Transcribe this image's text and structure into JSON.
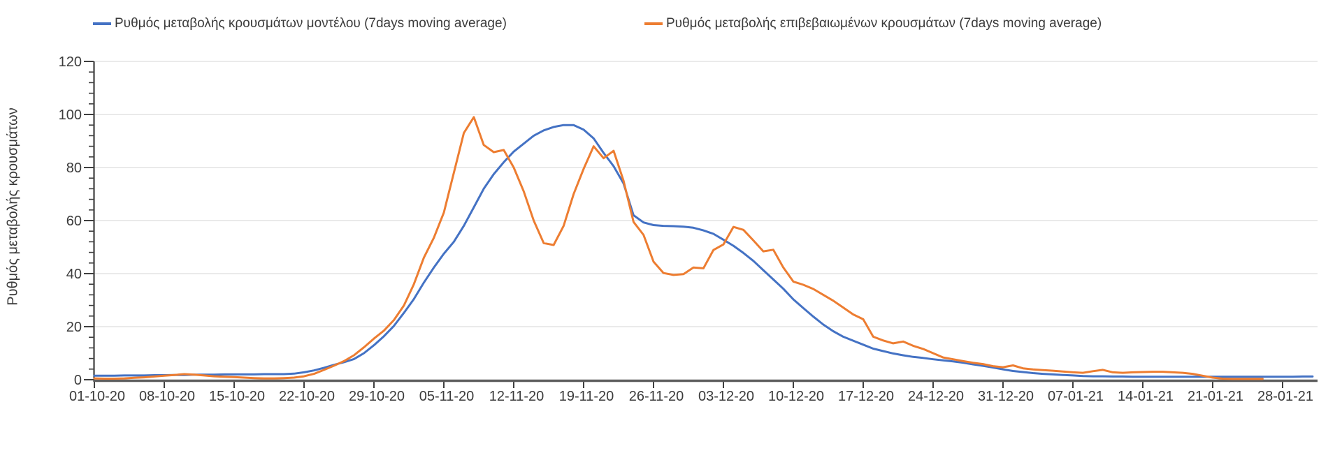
{
  "page": {
    "background": "#ffffff"
  },
  "chart_data": {
    "type": "line",
    "title": "",
    "xlabel": "",
    "ylabel": "Ρυθμός μεταβολής κρουσμάτων",
    "ylim": [
      0,
      120
    ],
    "y_ticks": [
      0,
      20,
      40,
      60,
      80,
      100,
      120
    ],
    "y_tick_step": 20,
    "y_minor_tick_step": 4,
    "grid": "horizontal",
    "legend_position": "top",
    "x_tick_interval_days": 7,
    "x_tick_labels": [
      "01-10-20",
      "08-10-20",
      "15-10-20",
      "22-10-20",
      "29-10-20",
      "05-11-20",
      "12-11-20",
      "19-11-20",
      "26-11-20",
      "03-12-20",
      "10-12-20",
      "17-12-20",
      "24-12-20",
      "31-12-20",
      "07-01-21",
      "14-01-21",
      "21-01-21",
      "28-01-21"
    ],
    "x_start_date": "01-10-20",
    "colors": {
      "grid": "#e4e4e4",
      "axis_line": "#5e5e5e",
      "tick": "#3f3f3f",
      "text": "#3b3b3b"
    },
    "series": [
      {
        "name": "Ρυθμός μεταβολής κρουσμάτων μοντέλου (7days moving average)",
        "color": "#4472c4",
        "start_day": 0,
        "values": [
          1.5,
          1.5,
          1.5,
          1.6,
          1.6,
          1.6,
          1.7,
          1.7,
          1.8,
          1.8,
          1.9,
          1.9,
          1.9,
          2.0,
          2.0,
          2.0,
          2.0,
          2.1,
          2.1,
          2.1,
          2.3,
          2.8,
          3.5,
          4.5,
          5.6,
          6.6,
          7.8,
          10.0,
          13.0,
          16.4,
          20.3,
          25.2,
          30.4,
          36.6,
          42.3,
          47.5,
          52.0,
          58.0,
          65.0,
          72.0,
          77.5,
          82.0,
          86.0,
          89.0,
          92.0,
          94.0,
          95.3,
          96.0,
          96.0,
          94.3,
          91.0,
          85.5,
          80.5,
          74.0,
          62.0,
          59.3,
          58.3,
          58.0,
          57.9,
          57.7,
          57.3,
          56.3,
          55.0,
          52.8,
          50.5,
          47.8,
          44.8,
          41.3,
          37.8,
          34.3,
          30.3,
          27.0,
          23.8,
          20.8,
          18.3,
          16.2,
          14.7,
          13.2,
          11.7,
          10.8,
          9.9,
          9.2,
          8.6,
          8.2,
          7.7,
          7.3,
          6.9,
          6.4,
          5.8,
          5.2,
          4.6,
          3.9,
          3.3,
          2.9,
          2.5,
          2.2,
          2.0,
          1.8,
          1.6,
          1.4,
          1.3,
          1.3,
          1.2,
          1.2,
          1.1,
          1.1,
          1.1,
          1.1,
          1.1,
          1.1,
          1.1,
          1.1,
          1.1,
          1.1,
          1.1,
          1.1,
          1.1,
          1.1,
          1.1,
          1.1,
          1.1,
          1.2,
          1.2
        ]
      },
      {
        "name": "Ρυθμός μεταβολής επιβεβαιωμένων κρουσμάτων (7days moving average)",
        "color": "#ed7d31",
        "start_day": 0,
        "values": [
          0.5,
          0.4,
          0.4,
          0.5,
          0.7,
          0.9,
          1.2,
          1.5,
          1.8,
          2.1,
          1.9,
          1.6,
          1.3,
          1.1,
          1.0,
          0.8,
          0.6,
          0.5,
          0.5,
          0.6,
          0.8,
          1.3,
          2.2,
          3.7,
          5.3,
          7.0,
          9.2,
          12.2,
          15.5,
          18.5,
          22.5,
          28.0,
          36.0,
          46.0,
          53.5,
          63.0,
          78.0,
          93.0,
          99.0,
          88.5,
          85.8,
          86.6,
          80.0,
          71.0,
          60.0,
          51.5,
          50.8,
          58.0,
          70.0,
          79.5,
          88.0,
          83.5,
          86.3,
          75.0,
          59.5,
          54.6,
          44.5,
          40.2,
          39.5,
          39.8,
          42.3,
          42.0,
          48.9,
          51.0,
          57.6,
          56.5,
          52.5,
          48.4,
          49.0,
          42.3,
          37.0,
          35.8,
          34.2,
          32.0,
          29.8,
          27.2,
          24.6,
          22.8,
          16.2,
          14.8,
          13.7,
          14.4,
          12.8,
          11.6,
          10.0,
          8.4,
          7.7,
          7.0,
          6.4,
          5.9,
          5.1,
          4.7,
          5.4,
          4.3,
          3.9,
          3.6,
          3.4,
          3.1,
          2.8,
          2.6,
          3.2,
          3.7,
          2.8,
          2.6,
          2.8,
          2.9,
          3.0,
          3.0,
          2.8,
          2.6,
          2.2,
          1.5,
          0.8,
          0.4,
          0.3,
          0.3,
          0.3,
          0.3
        ]
      }
    ]
  }
}
